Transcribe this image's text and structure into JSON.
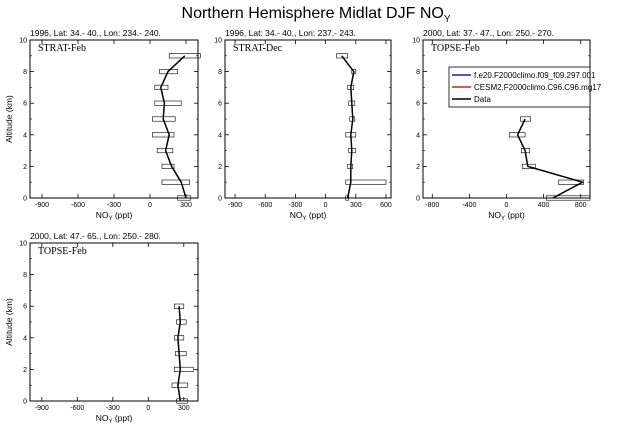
{
  "figure": {
    "title": "Northern Hemisphere Midlat DJF NO",
    "title_sub": "Y"
  },
  "legend": {
    "items": [
      {
        "label": "f.e20.F2000climo.f09_f09.297.001",
        "color": "#1c1ca8"
      },
      {
        "label": "CESM2.F2000climo.C96.C96.mg17",
        "color": "#e01818"
      },
      {
        "label": "Data",
        "color": "#000000"
      }
    ]
  },
  "chart_data": [
    {
      "type": "line",
      "header": "1996, Lat: 34.- 40., Lon: 234.- 240.",
      "inner_label": "STRAT-Feb",
      "xlabel": "NO",
      "xlabel_sub": "Y",
      "xlabel_unit": "(ppt)",
      "ylabel": "Altitude (km)",
      "xlim": [
        -1000,
        400
      ],
      "ylim": [
        0,
        10
      ],
      "xticks": [
        -900,
        -600,
        -300,
        0,
        300
      ],
      "yticks": [
        0,
        2,
        4,
        6,
        8,
        10
      ],
      "series": [
        {
          "altitude": [
            0,
            1,
            2,
            3,
            4,
            5,
            6,
            7,
            8,
            9
          ],
          "value": [
            300,
            260,
            180,
            130,
            160,
            110,
            120,
            90,
            150,
            290
          ],
          "range_low": [
            230,
            100,
            100,
            60,
            20,
            20,
            40,
            40,
            80,
            160
          ],
          "range_high": [
            340,
            330,
            200,
            190,
            200,
            210,
            260,
            150,
            230,
            420
          ]
        }
      ]
    },
    {
      "type": "line",
      "header": "1996, Lat: 34.- 40., Lon: 237.- 243.",
      "inner_label": "STRAT-Dec",
      "xlabel": "NO",
      "xlabel_sub": "Y",
      "xlabel_unit": "(ppt)",
      "ylabel": "",
      "xlim": [
        -1000,
        650
      ],
      "ylim": [
        0,
        10
      ],
      "xticks": [
        -900,
        -600,
        -300,
        0,
        300,
        600
      ],
      "yticks": [
        0,
        2,
        4,
        6,
        8,
        10
      ],
      "series": [
        {
          "altitude": [
            0,
            1,
            2,
            3,
            4,
            5,
            6,
            7,
            8,
            9
          ],
          "value": [
            220,
            250,
            250,
            260,
            250,
            270,
            260,
            250,
            280,
            160
          ],
          "range_low": [
            200,
            200,
            220,
            230,
            200,
            240,
            230,
            220,
            260,
            110
          ],
          "range_high": [
            230,
            600,
            270,
            300,
            300,
            290,
            290,
            280,
            300,
            220
          ]
        }
      ]
    },
    {
      "type": "line",
      "header": "2000, Lat: 37.- 47., Lon: 250.- 270.",
      "inner_label": "TOPSE-Feb",
      "xlabel": "NO",
      "xlabel_sub": "Y",
      "xlabel_unit": "(ppt)",
      "ylabel": "",
      "xlim": [
        -900,
        900
      ],
      "ylim": [
        0,
        10
      ],
      "xticks": [
        -800,
        -400,
        0,
        400,
        800
      ],
      "yticks": [
        0,
        2,
        4,
        6,
        8,
        10
      ],
      "series": [
        {
          "altitude": [
            0,
            1,
            2,
            3,
            4,
            5
          ],
          "value": [
            500,
            820,
            230,
            200,
            120,
            200
          ],
          "range_low": [
            430,
            560,
            170,
            160,
            30,
            150
          ],
          "range_high": [
            900,
            830,
            310,
            250,
            200,
            260
          ]
        }
      ]
    },
    {
      "type": "line",
      "header": "2000, Lat: 47.- 65., Lon: 250.- 280.",
      "inner_label": "TOPSE-Feb",
      "xlabel": "NO",
      "xlabel_sub": "Y",
      "xlabel_unit": "(ppt)",
      "ylabel": "Altitude (km)",
      "xlim": [
        -1000,
        420
      ],
      "ylim": [
        0,
        10
      ],
      "xticks": [
        -900,
        -600,
        -300,
        0,
        300
      ],
      "yticks": [
        0,
        2,
        4,
        6,
        8,
        10
      ],
      "series": [
        {
          "altitude": [
            0,
            1,
            2,
            3,
            4,
            5,
            6
          ],
          "value": [
            270,
            250,
            270,
            260,
            250,
            270,
            260
          ],
          "range_low": [
            240,
            200,
            220,
            230,
            220,
            240,
            220
          ],
          "range_high": [
            330,
            330,
            380,
            320,
            300,
            320,
            300
          ]
        }
      ]
    }
  ]
}
